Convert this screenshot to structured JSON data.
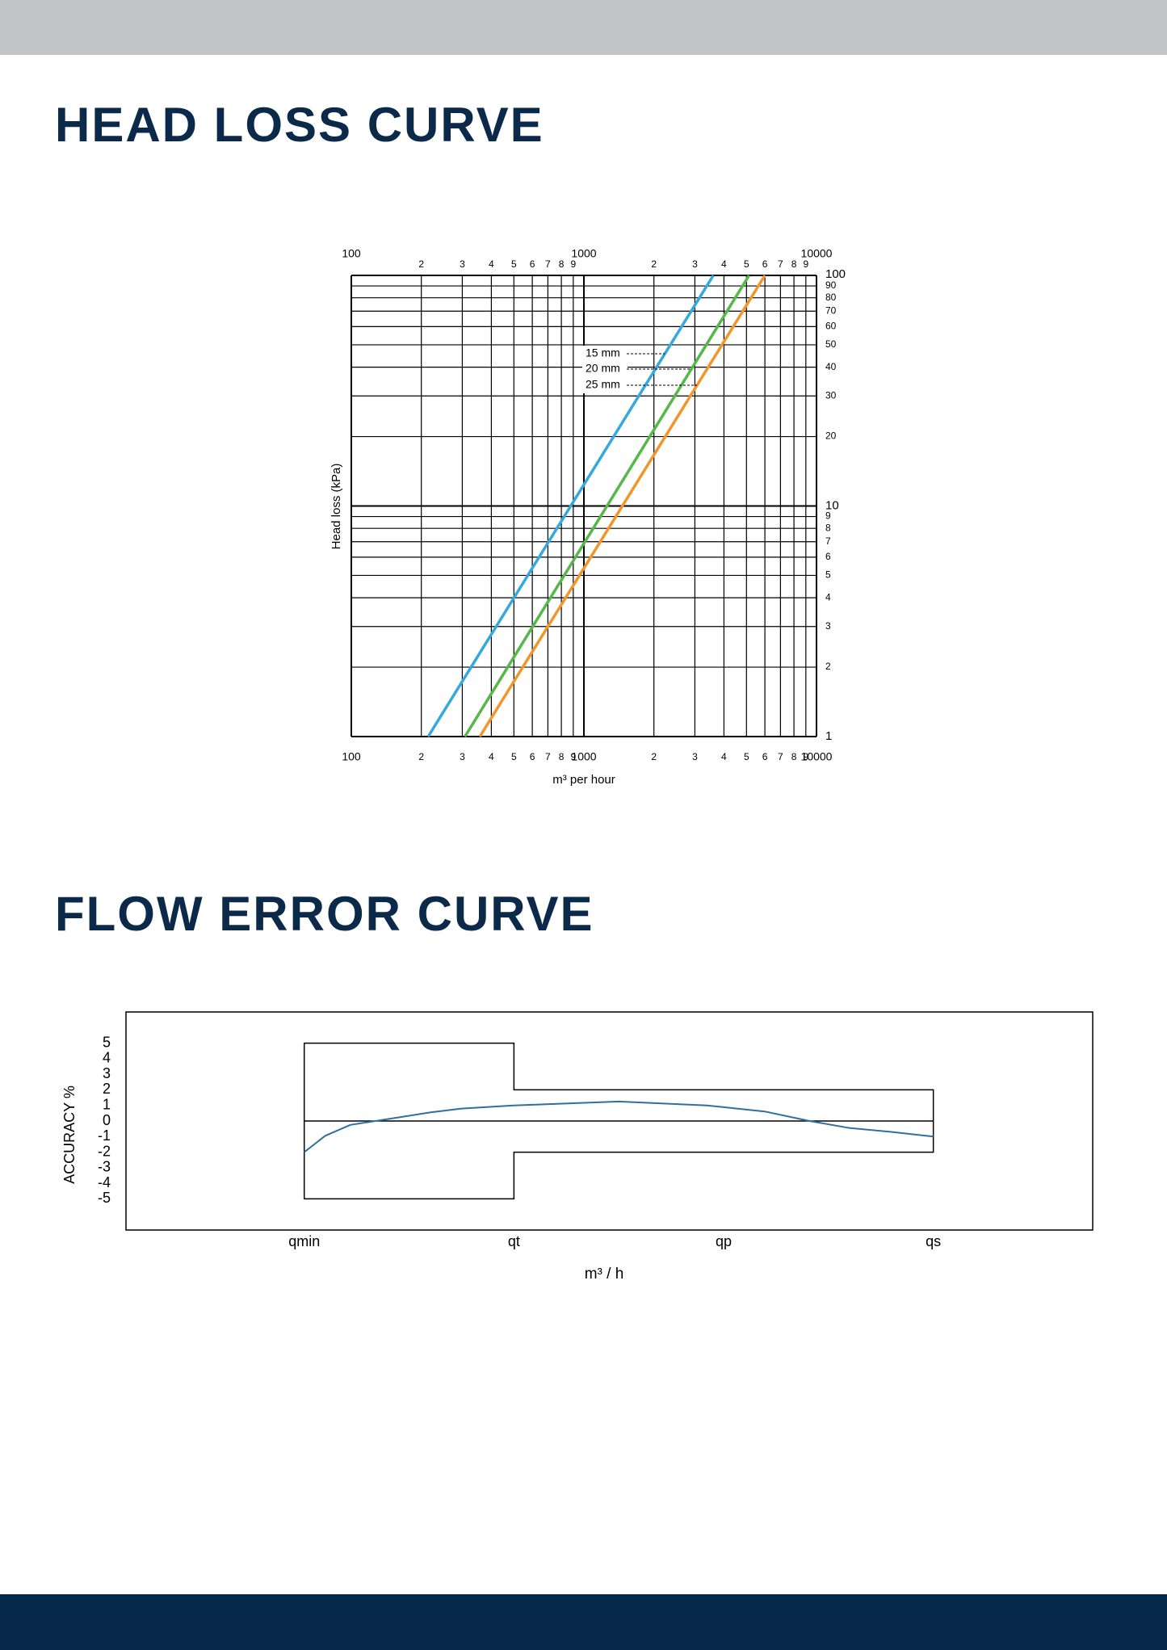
{
  "chart_data": [
    {
      "type": "line",
      "title": "HEAD LOSS CURVE",
      "x_label": "m³ per hour",
      "y_label": "Head loss (kPa)",
      "x_log": true,
      "y_log": true,
      "grid": true,
      "xlim": [
        100,
        10000
      ],
      "ylim": [
        1,
        100
      ],
      "xticks": [
        100,
        {
          "value": 200,
          "label": "2"
        },
        {
          "value": 300,
          "label": "3"
        },
        {
          "value": 400,
          "label": "4"
        },
        {
          "value": 500,
          "label": "5"
        },
        {
          "value": 600,
          "label": "6"
        },
        {
          "value": 700,
          "label": "7"
        },
        {
          "value": 800,
          "label": "8"
        },
        {
          "value": 900,
          "label": "9"
        },
        1000,
        {
          "value": 2000,
          "label": "2"
        },
        {
          "value": 3000,
          "label": "3"
        },
        {
          "value": 4000,
          "label": "4"
        },
        {
          "value": 5000,
          "label": "5"
        },
        {
          "value": 6000,
          "label": "6"
        },
        {
          "value": 7000,
          "label": "7"
        },
        {
          "value": 8000,
          "label": "8"
        },
        {
          "value": 9000,
          "label": "9"
        },
        10000
      ],
      "yticks": [
        1,
        2,
        3,
        4,
        5,
        6,
        7,
        8,
        9,
        10,
        20,
        30,
        40,
        50,
        60,
        70,
        80,
        90,
        100
      ],
      "series": [
        {
          "name": "15 mm",
          "color": "#35a8dc",
          "x": [
            214,
            3600
          ],
          "values": [
            1,
            100
          ]
        },
        {
          "name": "20 mm",
          "color": "#55b848",
          "x": [
            308,
            5130
          ],
          "values": [
            1,
            100
          ]
        },
        {
          "name": "25 mm",
          "color": "#f0962a",
          "x": [
            357,
            6000
          ],
          "values": [
            1,
            100
          ]
        }
      ]
    },
    {
      "type": "line",
      "title": "FLOW ERROR CURVE",
      "x_label": "m³ / h",
      "y_label": "ACCURACY %",
      "xlim": [
        -0.85,
        3.76
      ],
      "ylim": [
        -7,
        7
      ],
      "xticks": [
        {
          "value": 0,
          "label": "qmin"
        },
        {
          "value": 1,
          "label": "qt"
        },
        {
          "value": 2,
          "label": "qp"
        },
        {
          "value": 3,
          "label": "qs"
        }
      ],
      "yticks": [
        5,
        4,
        3,
        2,
        1,
        0,
        -1,
        -2,
        -3,
        -4,
        -5
      ],
      "limits": {
        "x": [
          0,
          1,
          1,
          3
        ],
        "upper": [
          5,
          5,
          2,
          2
        ],
        "lower": [
          -5,
          -5,
          -2,
          -2
        ]
      },
      "series": [
        {
          "color": "#2f6fa0",
          "x": [
            0,
            0.1,
            0.22,
            0.34,
            0.6,
            0.75,
            1,
            1.5,
            1.92,
            2.2,
            2.41,
            2.6,
            2.8,
            3
          ],
          "values": [
            -2,
            -0.95,
            -0.25,
            0,
            0.55,
            0.8,
            1,
            1.25,
            1,
            0.6,
            0,
            -0.45,
            -0.7,
            -1
          ]
        }
      ]
    }
  ]
}
